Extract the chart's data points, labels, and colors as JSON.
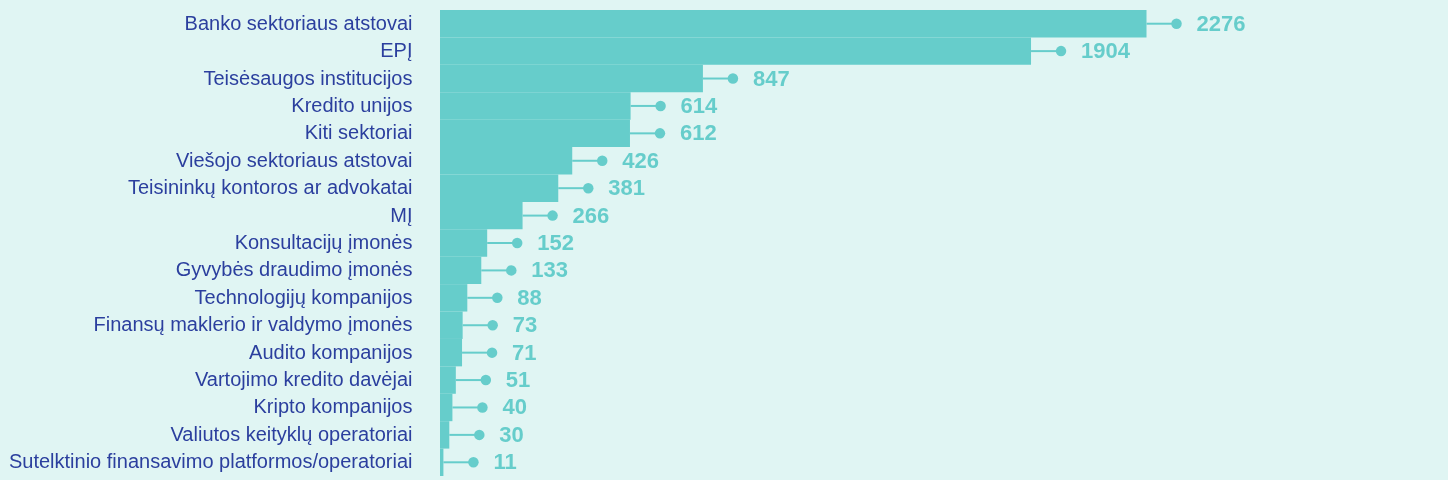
{
  "chart_data": {
    "type": "bar",
    "orientation": "horizontal",
    "data_labels": true,
    "color": "#66cdcb",
    "categories": [
      "Banko sektoriaus atstovai",
      "EPĮ",
      "Teisėsaugos institucijos",
      "Kredito unijos",
      "Kiti sektoriai",
      "Viešojo sektoriaus atstovai",
      "Teisininkų kontoros ar advokatai",
      "MĮ",
      "Konsultacijų įmonės",
      "Gyvybės draudimo įmonės",
      "Technologijų kompanijos",
      "Finansų maklerio ir valdymo įmonės",
      "Audito kompanijos",
      "Vartojimo kredito davėjai",
      "Kripto kompanijos",
      "Valiutos keityklų operatoriai",
      "Sutelktinio finansavimo platformos/operatoriai"
    ],
    "values": [
      2276,
      1904,
      847,
      614,
      612,
      426,
      381,
      266,
      152,
      133,
      88,
      73,
      71,
      51,
      40,
      30,
      11
    ]
  }
}
